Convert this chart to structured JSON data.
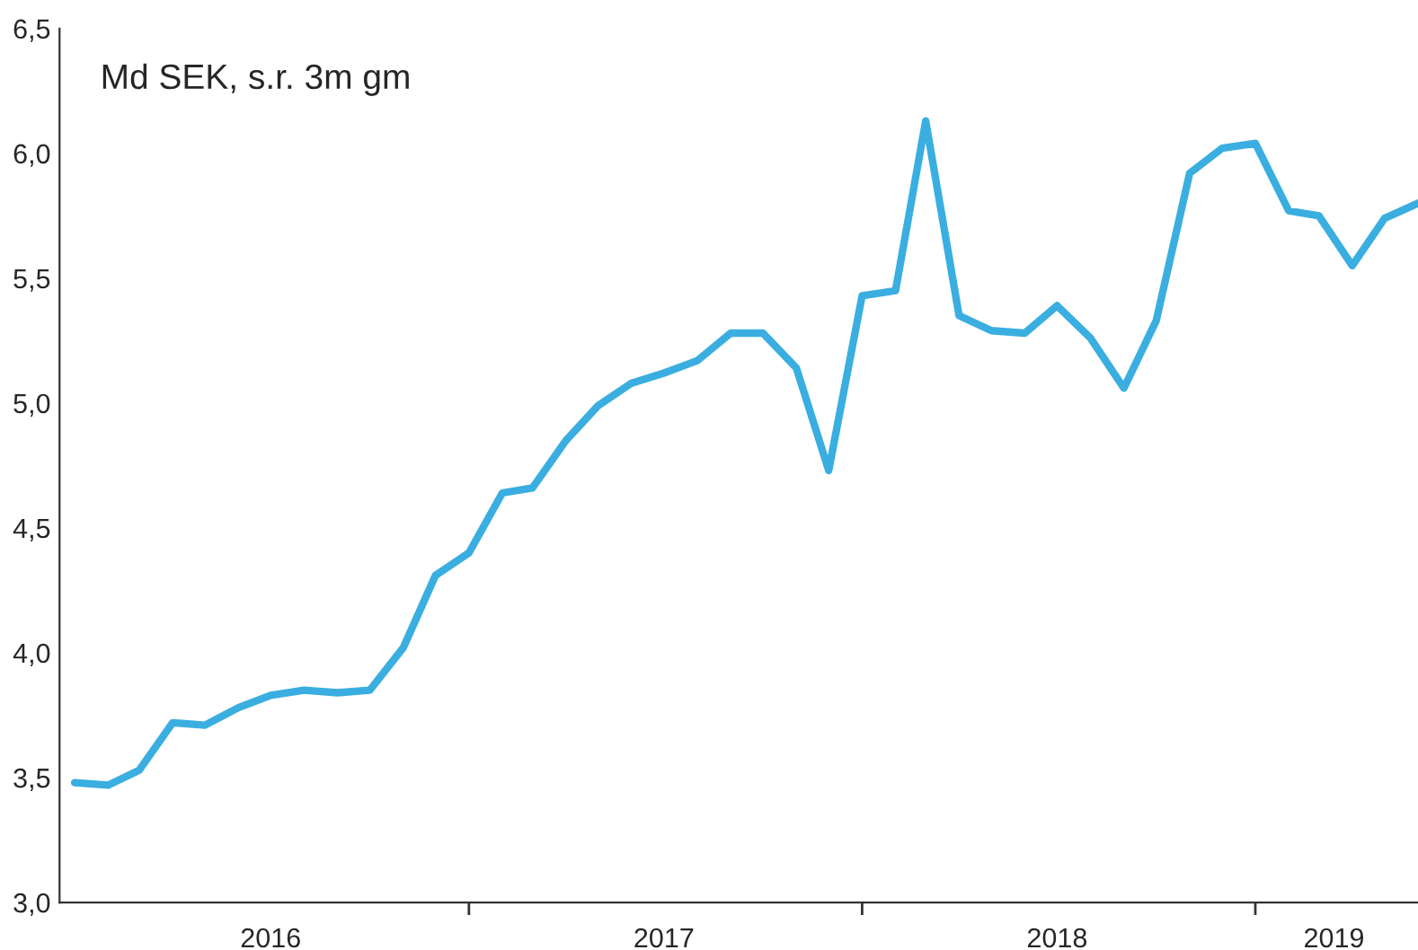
{
  "chart_data": {
    "type": "line",
    "title": "Md SEK, s.r. 3m gm",
    "x": [
      "2016-01",
      "2016-02",
      "2016-03",
      "2016-04",
      "2016-05",
      "2016-06",
      "2016-07",
      "2016-08",
      "2016-09",
      "2016-10",
      "2016-11",
      "2016-12",
      "2017-01",
      "2017-02",
      "2017-03",
      "2017-04",
      "2017-05",
      "2017-06",
      "2017-07",
      "2017-08",
      "2017-09",
      "2017-10",
      "2017-11",
      "2017-12",
      "2018-01",
      "2018-02",
      "2018-03",
      "2018-04",
      "2018-05",
      "2018-06",
      "2018-07",
      "2018-08",
      "2018-09",
      "2018-10",
      "2018-11",
      "2018-12",
      "2019-01",
      "2019-02",
      "2019-03",
      "2019-04",
      "2019-05",
      "2019-06"
    ],
    "series": [
      {
        "color": "#3aaee0",
        "values": [
          3.48,
          3.47,
          3.53,
          3.72,
          3.71,
          3.78,
          3.83,
          3.85,
          3.84,
          3.85,
          4.02,
          4.31,
          4.4,
          4.64,
          4.66,
          4.85,
          4.99,
          5.08,
          5.12,
          5.17,
          5.28,
          5.28,
          5.14,
          4.73,
          5.43,
          5.45,
          6.13,
          5.35,
          5.29,
          5.28,
          5.39,
          5.26,
          5.06,
          5.33,
          5.92,
          6.02,
          6.04,
          5.77,
          5.75,
          5.55,
          5.74,
          5.8
        ]
      }
    ],
    "xlim": [
      "2015-12-18",
      "2019-06-01"
    ],
    "xticks": [
      {
        "value": "2017-01-01",
        "label": null
      },
      {
        "value": "2018-01-01",
        "label": null
      },
      {
        "value": "2019-01-01",
        "label": null
      },
      {
        "value": "2016-07-01",
        "label": "2016"
      },
      {
        "value": "2017-07-01",
        "label": "2017"
      },
      {
        "value": "2018-07-01",
        "label": "2018"
      },
      {
        "value": "2019-03-15",
        "label": "2019"
      }
    ],
    "ylim": [
      3.0,
      6.5
    ],
    "yticks": [
      {
        "value": 3.0,
        "label": "3,0"
      },
      {
        "value": 3.5,
        "label": "3,5"
      },
      {
        "value": 4.0,
        "label": "4,0"
      },
      {
        "value": 4.5,
        "label": "4,5"
      },
      {
        "value": 5.0,
        "label": "5,0"
      },
      {
        "value": 5.5,
        "label": "5,5"
      },
      {
        "value": 6.0,
        "label": "6,0"
      },
      {
        "value": 6.5,
        "label": "6,5"
      }
    ],
    "grid": false,
    "legend": false
  }
}
